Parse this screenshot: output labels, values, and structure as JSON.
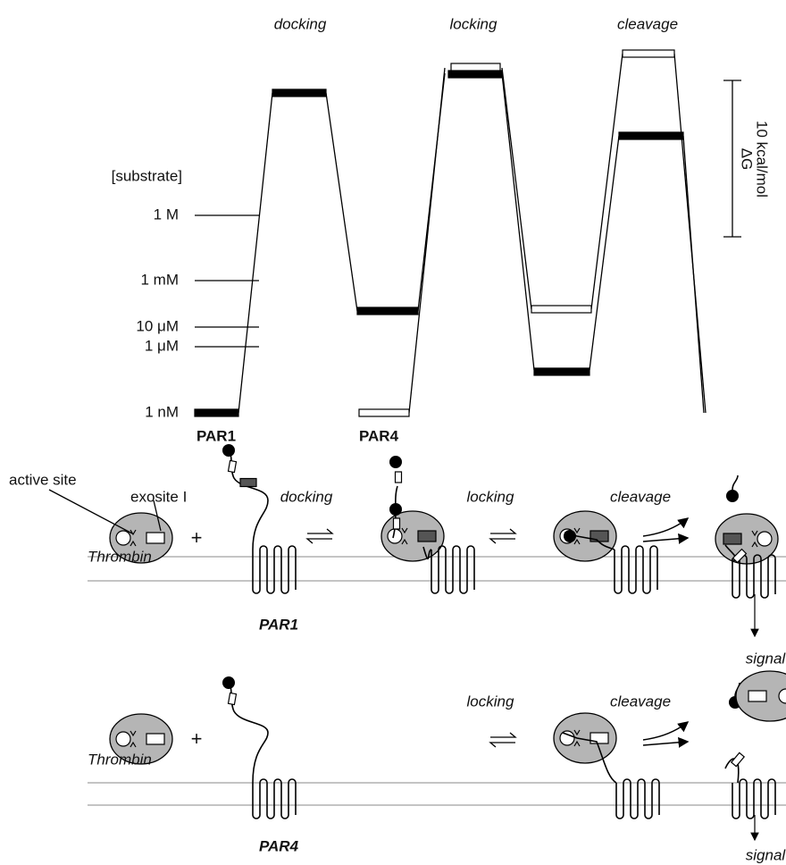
{
  "energy_diagram": {
    "step_labels": [
      "docking",
      "locking",
      "cleavage"
    ],
    "axis_title": "[substrate]",
    "concentration_labels": [
      "1 M",
      "1 mM",
      "10 μM",
      "1 μM",
      "1 nM"
    ],
    "receptor_labels": [
      "PAR1",
      "PAR4"
    ],
    "scale_bar": {
      "symbol": "ΔG",
      "label": "10 kcal/mol"
    }
  },
  "par1_scheme": {
    "active_site": "active site",
    "exosite": "exosite I",
    "enzyme": "Thrombin",
    "operator": "+",
    "step_labels": [
      "docking",
      "locking",
      "cleavage"
    ],
    "receptor": "PAR1",
    "output": "signal"
  },
  "par4_scheme": {
    "enzyme": "Thrombin",
    "operator": "+",
    "step_labels": [
      "locking",
      "cleavage"
    ],
    "receptor": "PAR4",
    "output": "signal"
  }
}
